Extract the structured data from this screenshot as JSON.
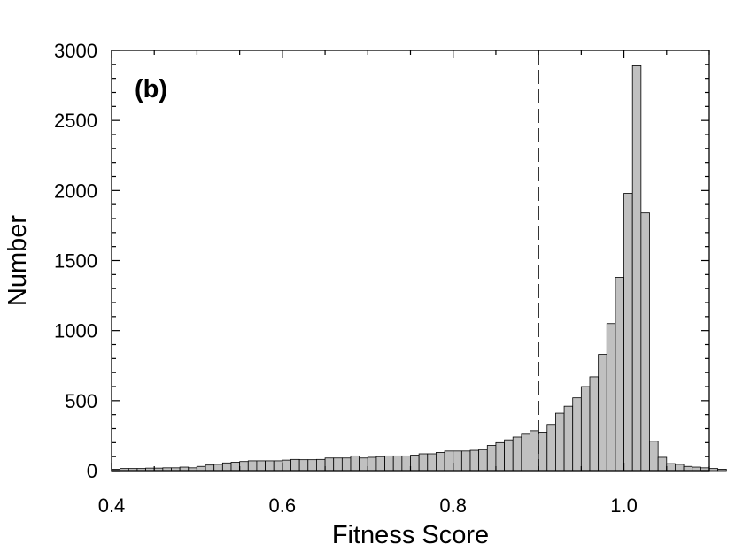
{
  "chart_data": {
    "type": "bar",
    "panel_label": "(b)",
    "xlabel": "Fitness Score",
    "ylabel": "Number",
    "xlim": [
      0.4,
      1.1
    ],
    "ylim": [
      0,
      3000
    ],
    "x_ticks": [
      0.4,
      0.6,
      0.8,
      1.0
    ],
    "x_tick_labels": [
      "0.4",
      "0.6",
      "0.8",
      "1.0"
    ],
    "y_ticks": [
      0,
      500,
      1000,
      1500,
      2000,
      2500,
      3000
    ],
    "y_tick_labels": [
      "0",
      "500",
      "1000",
      "1500",
      "2000",
      "2500",
      "3000"
    ],
    "bin_width": 0.01,
    "bin_start": 0.4,
    "values": [
      10,
      15,
      15,
      15,
      18,
      18,
      20,
      20,
      25,
      20,
      30,
      40,
      45,
      55,
      60,
      65,
      70,
      70,
      70,
      70,
      75,
      80,
      78,
      78,
      80,
      90,
      90,
      90,
      105,
      90,
      95,
      100,
      105,
      105,
      105,
      110,
      120,
      120,
      130,
      140,
      140,
      140,
      145,
      150,
      180,
      200,
      220,
      240,
      260,
      285,
      275,
      330,
      410,
      460,
      520,
      600,
      670,
      830,
      1050,
      1380,
      1980,
      2890,
      1840,
      210,
      95,
      50,
      45,
      30,
      25,
      20,
      15,
      10
    ],
    "reference_line_x": 0.9,
    "reference_line_style": "dashed",
    "bar_color": "#c0c0c0",
    "bar_edge_color": "#000000",
    "grid": false
  }
}
